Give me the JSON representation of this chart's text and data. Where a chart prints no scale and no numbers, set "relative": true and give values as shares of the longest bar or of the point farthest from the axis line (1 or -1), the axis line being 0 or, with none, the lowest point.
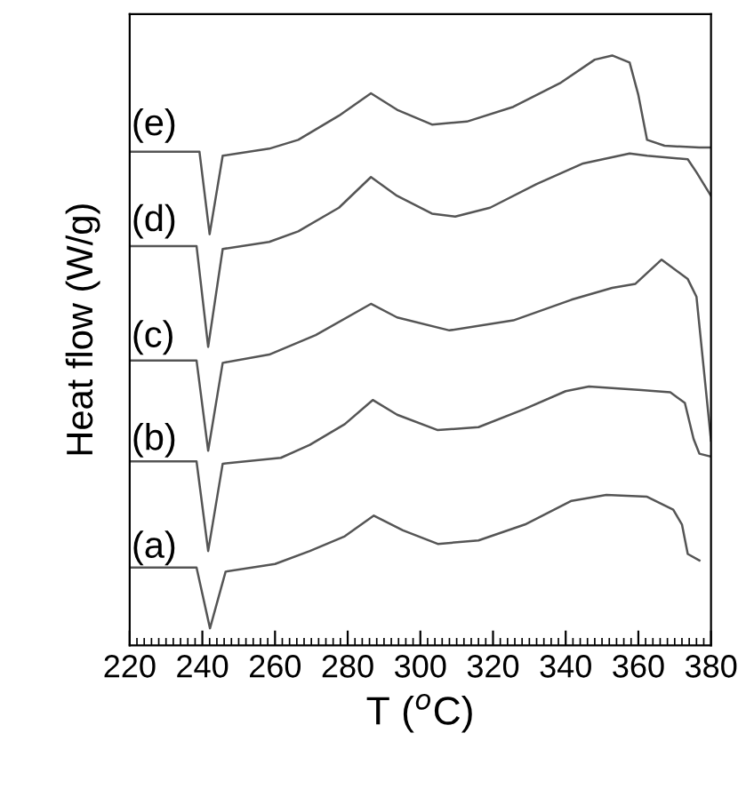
{
  "chart_data": {
    "type": "line",
    "relative": true,
    "xlabel": "T ($^{o}$C)",
    "ylabel": "Heat flow (W/g)",
    "xlim": [
      220,
      380
    ],
    "xticks": [
      220,
      240,
      260,
      280,
      300,
      320,
      340,
      360,
      380,
      {
        "value": 222,
        "label": null
      },
      {
        "value": 224,
        "label": null
      },
      {
        "value": 226,
        "label": null
      },
      {
        "value": 228,
        "label": null
      },
      {
        "value": 230,
        "label": null
      },
      {
        "value": 232,
        "label": null
      },
      {
        "value": 234,
        "label": null
      },
      {
        "value": 236,
        "label": null
      },
      {
        "value": 238,
        "label": null
      },
      {
        "value": 242,
        "label": null
      },
      {
        "value": 244,
        "label": null
      },
      {
        "value": 246,
        "label": null
      },
      {
        "value": 248,
        "label": null
      },
      {
        "value": 250,
        "label": null
      },
      {
        "value": 252,
        "label": null
      },
      {
        "value": 254,
        "label": null
      },
      {
        "value": 256,
        "label": null
      },
      {
        "value": 258,
        "label": null
      },
      {
        "value": 262,
        "label": null
      },
      {
        "value": 264,
        "label": null
      },
      {
        "value": 266,
        "label": null
      },
      {
        "value": 268,
        "label": null
      },
      {
        "value": 270,
        "label": null
      },
      {
        "value": 272,
        "label": null
      },
      {
        "value": 274,
        "label": null
      },
      {
        "value": 276,
        "label": null
      },
      {
        "value": 278,
        "label": null
      },
      {
        "value": 282,
        "label": null
      },
      {
        "value": 284,
        "label": null
      },
      {
        "value": 286,
        "label": null
      },
      {
        "value": 288,
        "label": null
      },
      {
        "value": 290,
        "label": null
      },
      {
        "value": 292,
        "label": null
      },
      {
        "value": 294,
        "label": null
      },
      {
        "value": 296,
        "label": null
      },
      {
        "value": 298,
        "label": null
      },
      {
        "value": 302,
        "label": null
      },
      {
        "value": 304,
        "label": null
      },
      {
        "value": 306,
        "label": null
      },
      {
        "value": 308,
        "label": null
      },
      {
        "value": 310,
        "label": null
      },
      {
        "value": 312,
        "label": null
      },
      {
        "value": 314,
        "label": null
      },
      {
        "value": 316,
        "label": null
      },
      {
        "value": 318,
        "label": null
      },
      {
        "value": 322,
        "label": null
      },
      {
        "value": 324,
        "label": null
      },
      {
        "value": 326,
        "label": null
      },
      {
        "value": 328,
        "label": null
      },
      {
        "value": 330,
        "label": null
      },
      {
        "value": 332,
        "label": null
      },
      {
        "value": 334,
        "label": null
      },
      {
        "value": 336,
        "label": null
      },
      {
        "value": 338,
        "label": null
      },
      {
        "value": 342,
        "label": null
      },
      {
        "value": 344,
        "label": null
      },
      {
        "value": 346,
        "label": null
      },
      {
        "value": 348,
        "label": null
      },
      {
        "value": 350,
        "label": null
      },
      {
        "value": 352,
        "label": null
      },
      {
        "value": 354,
        "label": null
      },
      {
        "value": 356,
        "label": null
      },
      {
        "value": 358,
        "label": null
      },
      {
        "value": 362,
        "label": null
      },
      {
        "value": 364,
        "label": null
      },
      {
        "value": 366,
        "label": null
      },
      {
        "value": 368,
        "label": null
      },
      {
        "value": 370,
        "label": null
      },
      {
        "value": 372,
        "label": null
      },
      {
        "value": 374,
        "label": null
      },
      {
        "value": 376,
        "label": null
      },
      {
        "value": 378,
        "label": null
      }
    ],
    "series": [
      {
        "name": "(a)",
        "color": "#555555",
        "x": [
          220,
          238.4,
          242.1,
          246.4,
          260,
          269.6,
          279.2,
          287.2,
          295.2,
          304.8,
          316,
          328.8,
          341.6,
          351.2,
          362.4,
          369.6,
          372,
          373.6,
          376.8
        ],
        "values": [
          0.132,
          0.132,
          0.029,
          0.125,
          0.138,
          0.16,
          0.185,
          0.22,
          0.195,
          0.172,
          0.178,
          0.205,
          0.245,
          0.255,
          0.252,
          0.23,
          0.205,
          0.155,
          0.144
        ]
      },
      {
        "name": "(b)",
        "color": "#555555",
        "x": [
          220,
          238.4,
          241.6,
          245.6,
          261.6,
          269.6,
          279.2,
          286.9,
          293.6,
          304.8,
          316,
          328.8,
          340,
          346.4,
          360.8,
          368.8,
          372.8,
          375.2,
          376.8,
          380
        ],
        "values": [
          0.312,
          0.312,
          0.16,
          0.308,
          0.318,
          0.34,
          0.375,
          0.416,
          0.391,
          0.365,
          0.37,
          0.401,
          0.431,
          0.439,
          0.433,
          0.429,
          0.411,
          0.35,
          0.325,
          0.32
        ]
      },
      {
        "name": "(c)",
        "color": "#555555",
        "x": [
          220,
          238.4,
          241.6,
          245.6,
          258.4,
          271.2,
          286.4,
          293.6,
          308,
          325.6,
          341.6,
          352.8,
          359.2,
          366.4,
          373.6,
          376,
          380
        ],
        "values": [
          0.483,
          0.483,
          0.33,
          0.479,
          0.493,
          0.526,
          0.579,
          0.556,
          0.534,
          0.551,
          0.586,
          0.606,
          0.613,
          0.654,
          0.621,
          0.591,
          0.347
        ]
      },
      {
        "name": "(d)",
        "color": "#555555",
        "x": [
          220,
          238.4,
          241.6,
          245.6,
          258.4,
          266.4,
          277.6,
          286.4,
          293.6,
          303.2,
          309.6,
          319.2,
          332,
          344.8,
          357.6,
          362.4,
          373.6,
          376,
          380
        ],
        "values": [
          0.677,
          0.677,
          0.506,
          0.672,
          0.684,
          0.702,
          0.742,
          0.794,
          0.762,
          0.732,
          0.727,
          0.742,
          0.782,
          0.817,
          0.834,
          0.83,
          0.824,
          0.802,
          0.762
        ]
      },
      {
        "name": "(e)",
        "color": "#555555",
        "x": [
          220,
          239.2,
          242,
          245.6,
          258.4,
          266.4,
          277.6,
          286.4,
          293.6,
          303.2,
          312.8,
          325.6,
          338.4,
          348,
          352.8,
          357.6,
          360,
          362.4,
          367.2,
          376.8,
          380
        ],
        "values": [
          0.837,
          0.837,
          0.697,
          0.83,
          0.842,
          0.857,
          0.898,
          0.936,
          0.908,
          0.883,
          0.888,
          0.913,
          0.953,
          0.993,
          1.0,
          0.988,
          0.933,
          0.857,
          0.847,
          0.844,
          0.844
        ]
      }
    ]
  }
}
